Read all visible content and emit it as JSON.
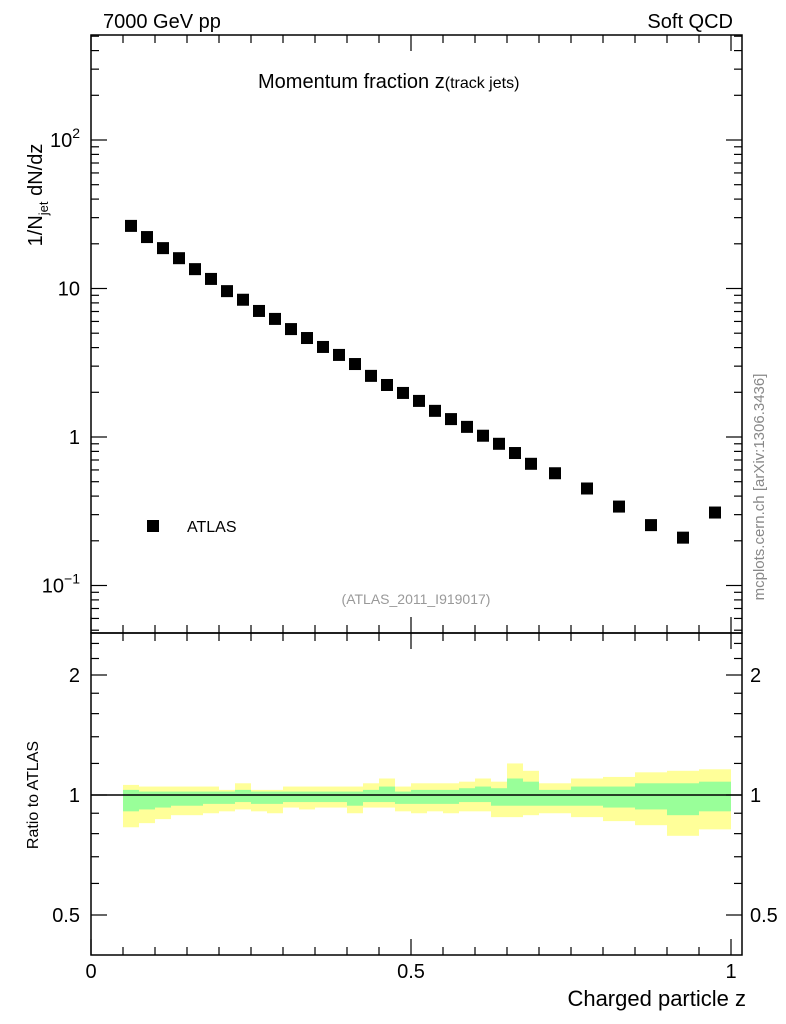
{
  "chart_data": {
    "type": "scatter",
    "header_left": "7000 GeV pp",
    "header_right": "Soft QCD",
    "title_main": "Momentum fraction z",
    "title_sub": "(track jets)",
    "ylabel_parts": {
      "pre": "1/N",
      "sub": "jet",
      "post": " dN/dz"
    },
    "xlabel": "Charged particle z",
    "ratio_ylabel": "Ratio to ATLAS",
    "analysis_id": "(ATLAS_2011_I919017)",
    "watermark": "mcplots.cern.ch [arXiv:1306.3436]",
    "legend": {
      "label": "ATLAS",
      "placement": "lower-left"
    },
    "xlim": [
      0,
      1.017
    ],
    "ylim": [
      0.048,
      500
    ],
    "yscale": "log",
    "ratio_ylim": [
      0.4,
      2.55
    ],
    "ratio_yscale": "log",
    "x_ticks": [
      {
        "v": 0,
        "label": "0"
      },
      {
        "v": 0.5,
        "label": "0.5"
      },
      {
        "v": 1,
        "label": "1"
      }
    ],
    "y_ticks": [
      {
        "v": 100,
        "base": "10",
        "exp": "2"
      },
      {
        "v": 10,
        "base": "10",
        "exp": ""
      },
      {
        "v": 1,
        "base": "1",
        "exp": ""
      },
      {
        "v": 0.1,
        "base": "10",
        "exp": "−1"
      }
    ],
    "ratio_ticks": [
      {
        "v": 2,
        "label": "2"
      },
      {
        "v": 1,
        "label": "1"
      },
      {
        "v": 0.5,
        "label": "0.5"
      }
    ],
    "bin_edges": [
      0.05,
      0.075,
      0.1,
      0.125,
      0.15,
      0.175,
      0.2,
      0.225,
      0.25,
      0.275,
      0.3,
      0.325,
      0.35,
      0.375,
      0.4,
      0.425,
      0.45,
      0.475,
      0.5,
      0.525,
      0.55,
      0.575,
      0.6,
      0.625,
      0.65,
      0.675,
      0.7,
      0.75,
      0.8,
      0.85,
      0.9,
      0.95,
      1.0
    ],
    "series": [
      {
        "name": "ATLAS",
        "x": [
          0.0625,
          0.0875,
          0.1125,
          0.1375,
          0.1625,
          0.1875,
          0.2125,
          0.2375,
          0.2625,
          0.2875,
          0.3125,
          0.3375,
          0.3625,
          0.3875,
          0.4125,
          0.4375,
          0.4625,
          0.4875,
          0.5125,
          0.5375,
          0.5625,
          0.5875,
          0.6125,
          0.6375,
          0.6625,
          0.6875,
          0.725,
          0.775,
          0.825,
          0.875,
          0.925,
          0.975
        ],
        "y": [
          26.4,
          22.2,
          18.7,
          16.0,
          13.5,
          11.6,
          9.6,
          8.4,
          7.06,
          6.24,
          5.33,
          4.64,
          4.04,
          3.57,
          3.1,
          2.58,
          2.24,
          1.98,
          1.75,
          1.5,
          1.32,
          1.17,
          1.02,
          0.9,
          0.78,
          0.66,
          0.57,
          0.45,
          0.34,
          0.255,
          0.21,
          0.31
        ]
      }
    ],
    "ratio_bands": {
      "total_up": [
        1.06,
        1.05,
        1.05,
        1.05,
        1.05,
        1.05,
        1.03,
        1.07,
        1.03,
        1.03,
        1.05,
        1.05,
        1.05,
        1.05,
        1.05,
        1.07,
        1.1,
        1.05,
        1.07,
        1.07,
        1.07,
        1.08,
        1.1,
        1.08,
        1.2,
        1.15,
        1.07,
        1.1,
        1.11,
        1.14,
        1.15,
        1.16
      ],
      "stat_up": [
        1.03,
        1.02,
        1.02,
        1.02,
        1.02,
        1.02,
        1.02,
        1.03,
        1.02,
        1.02,
        1.02,
        1.02,
        1.02,
        1.02,
        1.02,
        1.03,
        1.05,
        1.02,
        1.03,
        1.03,
        1.03,
        1.04,
        1.05,
        1.04,
        1.1,
        1.08,
        1.03,
        1.05,
        1.05,
        1.07,
        1.07,
        1.08
      ],
      "stat_down": [
        0.91,
        0.92,
        0.93,
        0.94,
        0.94,
        0.95,
        0.95,
        0.96,
        0.95,
        0.95,
        0.96,
        0.96,
        0.96,
        0.96,
        0.94,
        0.96,
        0.96,
        0.95,
        0.95,
        0.95,
        0.95,
        0.96,
        0.96,
        0.94,
        0.94,
        0.94,
        0.94,
        0.94,
        0.93,
        0.92,
        0.89,
        0.91
      ],
      "total_down": [
        0.83,
        0.85,
        0.87,
        0.89,
        0.89,
        0.9,
        0.91,
        0.92,
        0.91,
        0.9,
        0.93,
        0.92,
        0.93,
        0.93,
        0.9,
        0.93,
        0.93,
        0.91,
        0.9,
        0.91,
        0.9,
        0.91,
        0.91,
        0.88,
        0.88,
        0.89,
        0.9,
        0.88,
        0.86,
        0.84,
        0.79,
        0.82
      ],
      "total_color": "#ffff99",
      "stat_color": "#99ff99"
    },
    "grid": false
  }
}
